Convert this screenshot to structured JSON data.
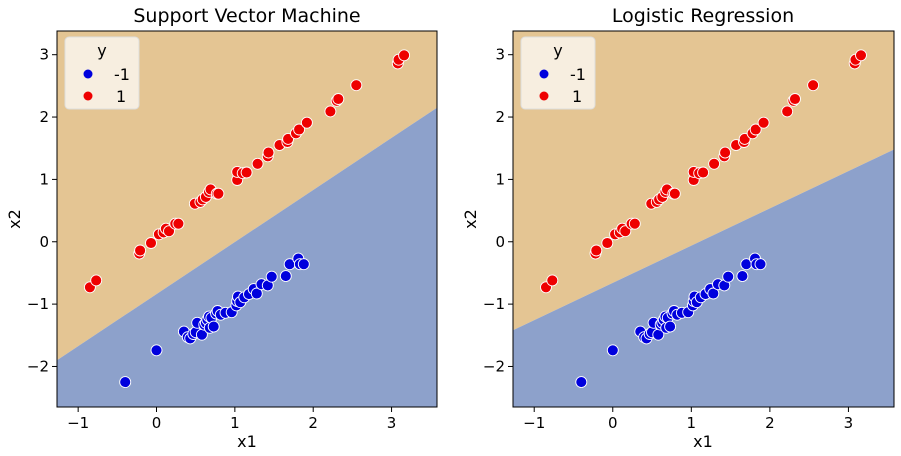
{
  "chart_data": [
    {
      "type": "scatter",
      "title": "Support Vector Machine",
      "xlabel": "x1",
      "ylabel": "x2",
      "xlim": [
        -1.27,
        3.58
      ],
      "ylim": [
        -2.65,
        3.38
      ],
      "xticks": [
        -1,
        0,
        1,
        2,
        3
      ],
      "yticks": [
        -2,
        -1,
        0,
        1,
        2,
        3
      ],
      "tick_labels": {
        "x": [
          "−1",
          "0",
          "1",
          "2",
          "3"
        ],
        "y": [
          "−2",
          "−1",
          "0",
          "1",
          "2",
          "3"
        ]
      },
      "grid": false,
      "legend_placement": "top-left",
      "legend": {
        "title": "y",
        "entries": [
          {
            "label": "-1",
            "color": "#0000dd"
          },
          {
            "label": "1",
            "color": "#ee0000"
          }
        ]
      },
      "decision_regions": {
        "upper_color": "#e4c593",
        "lower_color": "#8da1cb",
        "boundary": [
          [
            -1.27,
            -1.9
          ],
          [
            3.58,
            2.15
          ]
        ]
      },
      "series": [
        {
          "name": "1",
          "color": "#ee0000",
          "points": [
            [
              -0.85,
              -0.73
            ],
            [
              -0.77,
              -0.62
            ],
            [
              -0.22,
              -0.19
            ],
            [
              -0.21,
              -0.14
            ],
            [
              -0.07,
              -0.02
            ],
            [
              0.03,
              0.12
            ],
            [
              0.09,
              0.15
            ],
            [
              0.12,
              0.21
            ],
            [
              0.16,
              0.17
            ],
            [
              0.24,
              0.29
            ],
            [
              0.28,
              0.29
            ],
            [
              0.49,
              0.61
            ],
            [
              0.56,
              0.64
            ],
            [
              0.59,
              0.68
            ],
            [
              0.63,
              0.72
            ],
            [
              0.67,
              0.8
            ],
            [
              0.69,
              0.84
            ],
            [
              0.77,
              0.77
            ],
            [
              0.79,
              0.77
            ],
            [
              1.03,
              0.99
            ],
            [
              1.03,
              1.12
            ],
            [
              1.1,
              1.1
            ],
            [
              1.15,
              1.11
            ],
            [
              1.29,
              1.25
            ],
            [
              1.42,
              1.37
            ],
            [
              1.43,
              1.43
            ],
            [
              1.57,
              1.55
            ],
            [
              1.67,
              1.6
            ],
            [
              1.68,
              1.65
            ],
            [
              1.78,
              1.74
            ],
            [
              1.82,
              1.8
            ],
            [
              1.92,
              1.91
            ],
            [
              2.22,
              2.09
            ],
            [
              2.3,
              2.26
            ],
            [
              2.32,
              2.29
            ],
            [
              2.55,
              2.51
            ],
            [
              3.08,
              2.86
            ],
            [
              3.09,
              2.92
            ],
            [
              3.16,
              2.99
            ]
          ]
        },
        {
          "name": "-1",
          "color": "#0000dd",
          "points": [
            [
              -0.4,
              -2.25
            ],
            [
              0.0,
              -1.74
            ],
            [
              0.35,
              -1.44
            ],
            [
              0.4,
              -1.53
            ],
            [
              0.43,
              -1.55
            ],
            [
              0.47,
              -1.48
            ],
            [
              0.5,
              -1.45
            ],
            [
              0.52,
              -1.3
            ],
            [
              0.58,
              -1.49
            ],
            [
              0.61,
              -1.33
            ],
            [
              0.63,
              -1.3
            ],
            [
              0.65,
              -1.25
            ],
            [
              0.67,
              -1.2
            ],
            [
              0.68,
              -1.38
            ],
            [
              0.7,
              -1.22
            ],
            [
              0.73,
              -1.36
            ],
            [
              0.76,
              -1.15
            ],
            [
              0.78,
              -1.11
            ],
            [
              0.82,
              -1.17
            ],
            [
              0.88,
              -1.14
            ],
            [
              0.96,
              -1.13
            ],
            [
              1.02,
              -1.02
            ],
            [
              1.03,
              -0.95
            ],
            [
              1.04,
              -0.88
            ],
            [
              1.07,
              -0.97
            ],
            [
              1.12,
              -0.89
            ],
            [
              1.18,
              -0.84
            ],
            [
              1.24,
              -0.76
            ],
            [
              1.28,
              -0.83
            ],
            [
              1.34,
              -0.68
            ],
            [
              1.42,
              -0.7
            ],
            [
              1.47,
              -0.56
            ],
            [
              1.65,
              -0.55
            ],
            [
              1.7,
              -0.36
            ],
            [
              1.81,
              -0.27
            ],
            [
              1.83,
              -0.36
            ],
            [
              1.88,
              -0.36
            ]
          ]
        }
      ]
    },
    {
      "type": "scatter",
      "title": "Logistic Regression",
      "xlabel": "x1",
      "ylabel": "x2",
      "xlim": [
        -1.27,
        3.58
      ],
      "ylim": [
        -2.65,
        3.38
      ],
      "xticks": [
        -1,
        0,
        1,
        2,
        3
      ],
      "yticks": [
        -2,
        -1,
        0,
        1,
        2,
        3
      ],
      "tick_labels": {
        "x": [
          "−1",
          "0",
          "1",
          "2",
          "3"
        ],
        "y": [
          "−2",
          "−1",
          "0",
          "1",
          "2",
          "3"
        ]
      },
      "grid": false,
      "legend_placement": "top-left",
      "legend": {
        "title": "y",
        "entries": [
          {
            "label": "-1",
            "color": "#0000dd"
          },
          {
            "label": "1",
            "color": "#ee0000"
          }
        ]
      },
      "decision_regions": {
        "upper_color": "#e4c593",
        "lower_color": "#8da1cb",
        "boundary": [
          [
            -1.27,
            -1.42
          ],
          [
            3.58,
            1.48
          ]
        ]
      },
      "series": [
        {
          "name": "1",
          "color": "#ee0000",
          "points": [
            [
              -0.85,
              -0.73
            ],
            [
              -0.77,
              -0.62
            ],
            [
              -0.22,
              -0.19
            ],
            [
              -0.21,
              -0.14
            ],
            [
              -0.07,
              -0.02
            ],
            [
              0.03,
              0.12
            ],
            [
              0.09,
              0.15
            ],
            [
              0.12,
              0.21
            ],
            [
              0.16,
              0.17
            ],
            [
              0.24,
              0.29
            ],
            [
              0.28,
              0.29
            ],
            [
              0.49,
              0.61
            ],
            [
              0.56,
              0.64
            ],
            [
              0.59,
              0.68
            ],
            [
              0.63,
              0.72
            ],
            [
              0.67,
              0.8
            ],
            [
              0.69,
              0.84
            ],
            [
              0.77,
              0.77
            ],
            [
              0.79,
              0.77
            ],
            [
              1.03,
              0.99
            ],
            [
              1.03,
              1.12
            ],
            [
              1.1,
              1.1
            ],
            [
              1.15,
              1.11
            ],
            [
              1.29,
              1.25
            ],
            [
              1.42,
              1.37
            ],
            [
              1.43,
              1.43
            ],
            [
              1.57,
              1.55
            ],
            [
              1.67,
              1.6
            ],
            [
              1.68,
              1.65
            ],
            [
              1.78,
              1.74
            ],
            [
              1.82,
              1.8
            ],
            [
              1.92,
              1.91
            ],
            [
              2.22,
              2.09
            ],
            [
              2.3,
              2.26
            ],
            [
              2.32,
              2.29
            ],
            [
              2.55,
              2.51
            ],
            [
              3.08,
              2.86
            ],
            [
              3.09,
              2.92
            ],
            [
              3.16,
              2.99
            ]
          ]
        },
        {
          "name": "-1",
          "color": "#0000dd",
          "points": [
            [
              -0.4,
              -2.25
            ],
            [
              0.0,
              -1.74
            ],
            [
              0.35,
              -1.44
            ],
            [
              0.4,
              -1.53
            ],
            [
              0.43,
              -1.55
            ],
            [
              0.47,
              -1.48
            ],
            [
              0.5,
              -1.45
            ],
            [
              0.52,
              -1.3
            ],
            [
              0.58,
              -1.49
            ],
            [
              0.61,
              -1.33
            ],
            [
              0.63,
              -1.3
            ],
            [
              0.65,
              -1.25
            ],
            [
              0.67,
              -1.2
            ],
            [
              0.68,
              -1.38
            ],
            [
              0.7,
              -1.22
            ],
            [
              0.73,
              -1.36
            ],
            [
              0.76,
              -1.15
            ],
            [
              0.78,
              -1.11
            ],
            [
              0.82,
              -1.17
            ],
            [
              0.88,
              -1.14
            ],
            [
              0.96,
              -1.13
            ],
            [
              1.02,
              -1.02
            ],
            [
              1.03,
              -0.95
            ],
            [
              1.04,
              -0.88
            ],
            [
              1.07,
              -0.97
            ],
            [
              1.12,
              -0.89
            ],
            [
              1.18,
              -0.84
            ],
            [
              1.24,
              -0.76
            ],
            [
              1.28,
              -0.83
            ],
            [
              1.34,
              -0.68
            ],
            [
              1.42,
              -0.7
            ],
            [
              1.47,
              -0.56
            ],
            [
              1.65,
              -0.55
            ],
            [
              1.7,
              -0.36
            ],
            [
              1.81,
              -0.27
            ],
            [
              1.83,
              -0.36
            ],
            [
              1.88,
              -0.36
            ]
          ]
        }
      ]
    }
  ]
}
